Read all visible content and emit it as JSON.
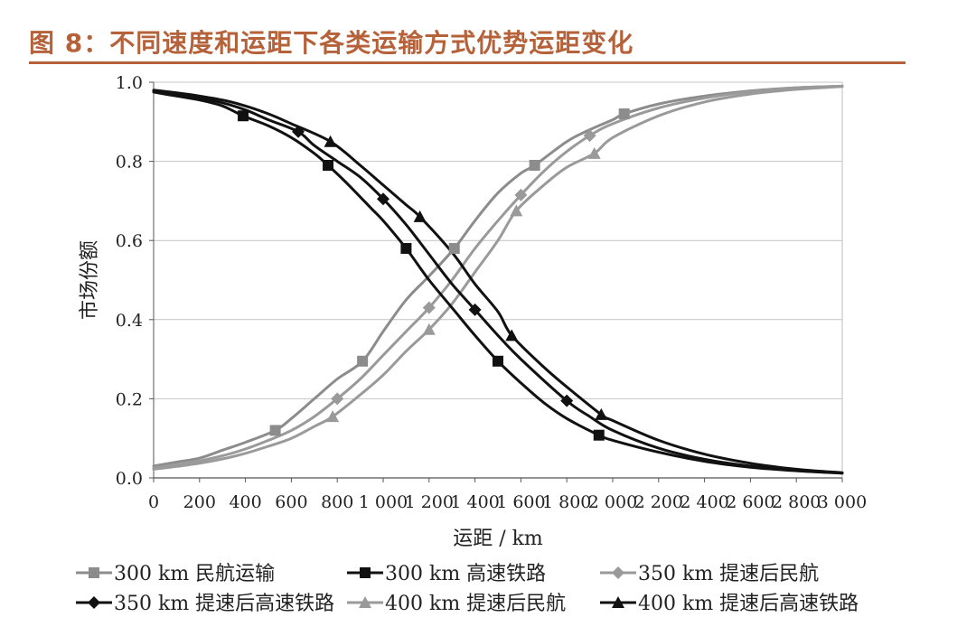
{
  "figure": {
    "title": "图 8：不同速度和运距下各类运输方式优势运距变化",
    "accent_color": "#b5623b"
  },
  "chart_data": {
    "type": "line",
    "title": "",
    "xlabel": "运距 / km",
    "ylabel": "市场份额",
    "xlim": [
      0,
      3000
    ],
    "ylim": [
      0,
      1.0
    ],
    "x_ticks": [
      0,
      200,
      400,
      600,
      800,
      1000,
      1200,
      1400,
      1600,
      1800,
      2000,
      2200,
      2400,
      2600,
      2800,
      3000
    ],
    "x_tick_labels": [
      "0",
      "200",
      "400",
      "600",
      "800",
      "1 000",
      "1 200",
      "1 400",
      "1 600",
      "1 800",
      "2 000",
      "2 200",
      "2 400",
      "2 600",
      "2 800",
      "3 000"
    ],
    "y_ticks": [
      0,
      0.2,
      0.4,
      0.6,
      0.8,
      1.0
    ],
    "y_tick_labels": [
      "0.0",
      "0.2",
      "0.4",
      "0.6",
      "0.8",
      "1.0"
    ],
    "grid": "horizontal",
    "legend_position": "bottom",
    "series": [
      {
        "name": "300 km 民航运输",
        "color": "#8c8c8c",
        "marker": "square",
        "x": [
          0,
          100,
          200,
          300,
          400,
          530,
          600,
          700,
          800,
          910,
          1000,
          1100,
          1200,
          1310,
          1400,
          1500,
          1600,
          1660,
          1800,
          1900,
          2000,
          2050,
          2200,
          2400,
          2600,
          2800,
          3000
        ],
        "y": [
          0.03,
          0.04,
          0.05,
          0.07,
          0.09,
          0.12,
          0.15,
          0.2,
          0.25,
          0.295,
          0.37,
          0.45,
          0.51,
          0.58,
          0.65,
          0.72,
          0.77,
          0.79,
          0.85,
          0.88,
          0.905,
          0.92,
          0.945,
          0.965,
          0.978,
          0.986,
          0.99
        ],
        "marker_indices": [
          5,
          9,
          13,
          17,
          21
        ]
      },
      {
        "name": "300 km 高速铁路",
        "color": "#111111",
        "marker": "square",
        "x": [
          0,
          100,
          200,
          300,
          390,
          500,
          600,
          700,
          760,
          850,
          950,
          1000,
          1100,
          1200,
          1300,
          1400,
          1500,
          1600,
          1700,
          1800,
          1940,
          2000,
          2200,
          2400,
          2600,
          2800,
          3000
        ],
        "y": [
          0.975,
          0.965,
          0.955,
          0.94,
          0.915,
          0.89,
          0.86,
          0.82,
          0.79,
          0.74,
          0.68,
          0.65,
          0.58,
          0.5,
          0.43,
          0.36,
          0.295,
          0.24,
          0.19,
          0.15,
          0.108,
          0.095,
          0.065,
          0.042,
          0.027,
          0.018,
          0.012
        ],
        "marker_indices": [
          4,
          8,
          12,
          16,
          20
        ]
      },
      {
        "name": "350 km 提速后民航",
        "color": "#9a9a9a",
        "marker": "diamond",
        "x": [
          0,
          100,
          200,
          300,
          400,
          500,
          600,
          700,
          800,
          900,
          1000,
          1100,
          1200,
          1300,
          1400,
          1500,
          1600,
          1700,
          1800,
          1900,
          2000,
          2200,
          2400,
          2600,
          2800,
          3000
        ],
        "y": [
          0.025,
          0.033,
          0.043,
          0.056,
          0.073,
          0.095,
          0.12,
          0.155,
          0.2,
          0.25,
          0.31,
          0.37,
          0.43,
          0.5,
          0.58,
          0.65,
          0.715,
          0.775,
          0.825,
          0.865,
          0.895,
          0.935,
          0.96,
          0.976,
          0.986,
          0.99
        ],
        "marker_indices": [
          8,
          12,
          16,
          19
        ]
      },
      {
        "name": "350 km 提速后高速铁路",
        "color": "#111111",
        "marker": "diamond",
        "x": [
          0,
          100,
          200,
          300,
          400,
          500,
          630,
          700,
          800,
          900,
          1000,
          1100,
          1200,
          1300,
          1400,
          1500,
          1600,
          1800,
          1900,
          2000,
          2200,
          2400,
          2600,
          2800,
          3000
        ],
        "y": [
          0.978,
          0.97,
          0.96,
          0.948,
          0.93,
          0.905,
          0.875,
          0.84,
          0.8,
          0.76,
          0.705,
          0.64,
          0.565,
          0.49,
          0.425,
          0.36,
          0.3,
          0.195,
          0.155,
          0.12,
          0.075,
          0.047,
          0.03,
          0.019,
          0.012
        ],
        "marker_indices": [
          6,
          10,
          14,
          17
        ]
      },
      {
        "name": "400 km 提速后民航",
        "color": "#9a9a9a",
        "marker": "triangle",
        "x": [
          0,
          100,
          200,
          300,
          400,
          500,
          600,
          700,
          780,
          900,
          1000,
          1100,
          1200,
          1300,
          1400,
          1500,
          1580,
          1700,
          1800,
          1920,
          2000,
          2200,
          2400,
          2600,
          2800,
          3000
        ],
        "y": [
          0.022,
          0.029,
          0.037,
          0.048,
          0.062,
          0.08,
          0.1,
          0.13,
          0.155,
          0.21,
          0.26,
          0.32,
          0.375,
          0.44,
          0.52,
          0.6,
          0.675,
          0.74,
          0.785,
          0.82,
          0.86,
          0.915,
          0.95,
          0.97,
          0.982,
          0.989
        ],
        "marker_indices": [
          8,
          12,
          16,
          19
        ]
      },
      {
        "name": "400 km 提速后高速铁路",
        "color": "#111111",
        "marker": "triangle",
        "x": [
          0,
          100,
          200,
          300,
          400,
          500,
          600,
          770,
          900,
          1000,
          1100,
          1160,
          1300,
          1400,
          1500,
          1560,
          1700,
          1800,
          1950,
          2000,
          2200,
          2400,
          2600,
          2800,
          3000
        ],
        "y": [
          0.98,
          0.973,
          0.965,
          0.955,
          0.94,
          0.92,
          0.895,
          0.85,
          0.79,
          0.74,
          0.69,
          0.66,
          0.57,
          0.49,
          0.42,
          0.36,
          0.28,
          0.23,
          0.16,
          0.145,
          0.095,
          0.06,
          0.037,
          0.022,
          0.013
        ],
        "marker_indices": [
          7,
          11,
          15,
          18
        ]
      }
    ]
  }
}
